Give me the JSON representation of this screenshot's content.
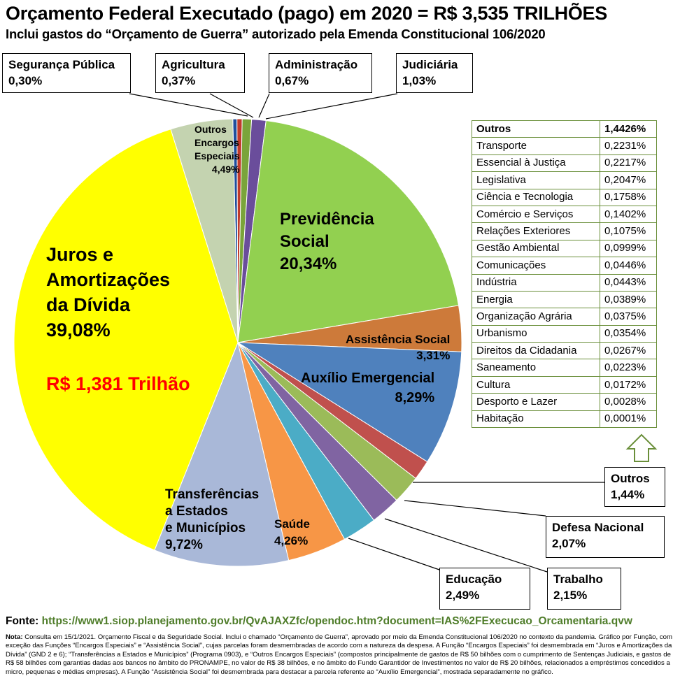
{
  "title": "Orçamento Federal Executado (pago) em 2020 = R$ 3,535 TRILHÕES",
  "subtitle": "Inclui gastos do “Orçamento de Guerra” autorizado pela Emenda Constitucional 106/2020",
  "chart_data": {
    "type": "pie",
    "unit": "%",
    "slices": [
      {
        "name": "Segurança Pública",
        "value": 0.3,
        "label": "0,30%",
        "color": "#1f4e9c"
      },
      {
        "name": "Agricultura",
        "value": 0.37,
        "label": "0,37%",
        "color": "#c0392b"
      },
      {
        "name": "Administração",
        "value": 0.67,
        "label": "0,67%",
        "color": "#7aa43a"
      },
      {
        "name": "Judiciária",
        "value": 1.03,
        "label": "1,03%",
        "color": "#6a4d9b"
      },
      {
        "name": "Previdência Social",
        "value": 20.34,
        "label": "20,34%",
        "color": "#92d050"
      },
      {
        "name": "Assistência Social",
        "value": 3.31,
        "label": "3,31%",
        "color": "#cd7a3a"
      },
      {
        "name": "Auxílio Emergencial",
        "value": 8.29,
        "label": "8,29%",
        "color": "#4f81bd"
      },
      {
        "name": "Outros",
        "value": 1.44,
        "label": "1,44%",
        "color": "#c0504d"
      },
      {
        "name": "Defesa Nacional",
        "value": 2.07,
        "label": "2,07%",
        "color": "#9bbb59"
      },
      {
        "name": "Trabalho",
        "value": 2.15,
        "label": "2,15%",
        "color": "#8064a2"
      },
      {
        "name": "Educação",
        "value": 2.49,
        "label": "2,49%",
        "color": "#4bacc6"
      },
      {
        "name": "Saúde",
        "value": 4.26,
        "label": "4,26%",
        "color": "#f79646"
      },
      {
        "name": "Transferências a Estados e Municípios",
        "value": 9.72,
        "label": "9,72%",
        "color": "#a9b8d8"
      },
      {
        "name": "Juros e Amortizações da Dívida",
        "value": 39.08,
        "label": "39,08%",
        "color": "#ffff00"
      },
      {
        "name": "Outros Encargos Especiais",
        "value": 4.49,
        "label": "4,49%",
        "color": "#c4d3b0"
      }
    ],
    "callout": "R$ 1,381 Trilhão"
  },
  "labels": {
    "seguranca": {
      "name": "Segurança Pública",
      "value": "0,30%"
    },
    "agricultura": {
      "name": "Agricultura",
      "value": "0,37%"
    },
    "administracao": {
      "name": "Administração",
      "value": "0,67%"
    },
    "judiciaria": {
      "name": "Judiciária",
      "value": "1,03%"
    },
    "outros_enc": {
      "l1": "Outros",
      "l2": "Encargos",
      "l3": "Especiais",
      "value": "4,49%"
    },
    "previdencia": {
      "l1": "Previdência",
      "l2": "Social",
      "value": "20,34%"
    },
    "assistencia": {
      "name": "Assistência Social",
      "value": "3,31%"
    },
    "auxilio": {
      "name": "Auxílio Emergencial",
      "value": "8,29%"
    },
    "juros": {
      "l1": "Juros e",
      "l2": "Amortizações",
      "l3": "da Dívida",
      "value": "39,08%"
    },
    "transferencias": {
      "l1": "Transferências",
      "l2": "a Estados",
      "l3": "e Municípios",
      "value": "9,72%"
    },
    "saude": {
      "name": "Saúde",
      "value": "4,26%"
    },
    "outros": {
      "name": "Outros",
      "value": "1,44%"
    },
    "defesa": {
      "name": "Defesa Nacional",
      "value": "2,07%"
    },
    "trabalho": {
      "name": "Trabalho",
      "value": "2,15%"
    },
    "educacao": {
      "name": "Educação",
      "value": "2,49%"
    }
  },
  "others_table": {
    "header": {
      "name": "Outros",
      "value": "1,4426%"
    },
    "rows": [
      {
        "name": "Transporte",
        "value": "0,2231%"
      },
      {
        "name": "Essencial à Justiça",
        "value": "0,2217%"
      },
      {
        "name": "Legislativa",
        "value": "0,2047%"
      },
      {
        "name": "Ciência e Tecnologia",
        "value": "0,1758%"
      },
      {
        "name": "Comércio e Serviços",
        "value": "0,1402%"
      },
      {
        "name": "Relações Exteriores",
        "value": "0,1075%"
      },
      {
        "name": "Gestão Ambiental",
        "value": "0,0999%"
      },
      {
        "name": "Comunicações",
        "value": "0,0446%"
      },
      {
        "name": "Indústria",
        "value": "0,0443%"
      },
      {
        "name": "Energia",
        "value": "0,0389%"
      },
      {
        "name": "Organização Agrária",
        "value": "0,0375%"
      },
      {
        "name": "Urbanismo",
        "value": "0,0354%"
      },
      {
        "name": "Direitos da Cidadania",
        "value": "0,0267%"
      },
      {
        "name": "Saneamento",
        "value": "0,0223%"
      },
      {
        "name": "Cultura",
        "value": "0,0172%"
      },
      {
        "name": "Desporto e Lazer",
        "value": "0,0028%"
      },
      {
        "name": "Habitação",
        "value": "0,0001%"
      }
    ]
  },
  "footer": {
    "label": "Fonte:",
    "url": "https://www1.siop.planejamento.gov.br/QvAJAXZfc/opendoc.htm?document=IAS%2FExecucao_Orcamentaria.qvw"
  },
  "note": {
    "label": "Nota:",
    "text": "Consulta em 15/1/2021. Orçamento Fiscal e da Seguridade Social. Inclui o chamado “Orçamento de Guerra”, aprovado por meio da Emenda Constitucional 106/2020 no contexto da pandemia. Gráfico por Função, com exceção das Funções “Encargos Especiais” e “Assistência Social”, cujas parcelas foram desmembradas de acordo com a natureza da despesa. A Função “Encargos Especiais” foi desmembrada em “Juros e Amortizações da Dívida” (GND 2 e 6); “Transferências a Estados e Municípios” (Programa 0903), e “Outros Encargos Especiais” (compostos principalmente de gastos de R$ 50 bilhões com o cumprimento de Sentenças Judiciais, e gastos de R$ 58 bilhões com garantias dadas aos bancos no âmbito do PRONAMPE, no valor de R$ 38 bilhões, e no âmbito do Fundo Garantidor de Investimentos no valor de R$ 20 bilhões, relacionados a empréstimos concedidos a micro, pequenas e médias empresas). A Função “Assistência Social” foi desmembrada para destacar a parcela referente ao “Auxílio Emergencial”, mostrada separadamente no gráfico."
  }
}
